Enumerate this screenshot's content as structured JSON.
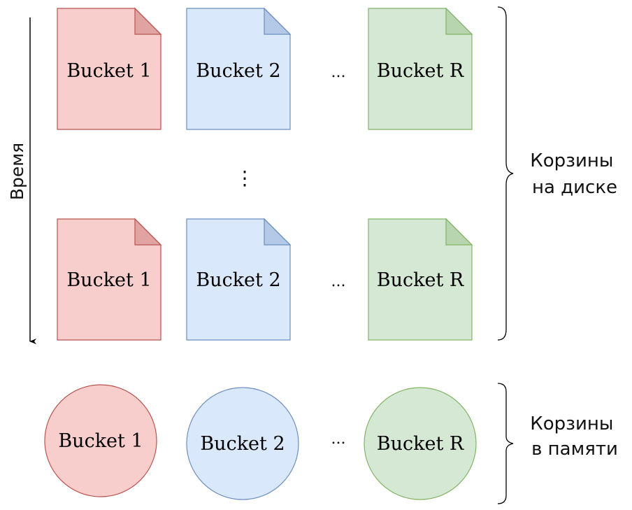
{
  "time_axis_label": "Время",
  "disk_rows": [
    {
      "buckets": [
        {
          "label": "Bucket 1",
          "color": "red"
        },
        {
          "label": "Bucket 2",
          "color": "blue"
        },
        {
          "label": "Bucket R",
          "color": "green"
        }
      ],
      "ellipsis": "..."
    },
    {
      "buckets": [
        {
          "label": "Bucket 1",
          "color": "red"
        },
        {
          "label": "Bucket 2",
          "color": "blue"
        },
        {
          "label": "Bucket R",
          "color": "green"
        }
      ],
      "ellipsis": "..."
    }
  ],
  "vertical_ellipsis": "⋮",
  "memory_row": {
    "buckets": [
      {
        "label": "Bucket 1",
        "color": "red"
      },
      {
        "label": "Bucket 2",
        "color": "blue"
      },
      {
        "label": "Bucket R",
        "color": "green"
      }
    ],
    "ellipsis": "..."
  },
  "disk_group_label": {
    "line1": "Корзины",
    "line2": "на диске"
  },
  "memory_group_label": {
    "line1": "Корзины",
    "line2": "в памяти"
  },
  "colors": {
    "red": {
      "fill": "#f8cecc",
      "stroke": "#b85450"
    },
    "blue": {
      "fill": "#dae8fc",
      "stroke": "#6c8ebf"
    },
    "green": {
      "fill": "#d5e8d4",
      "stroke": "#82b366"
    }
  }
}
